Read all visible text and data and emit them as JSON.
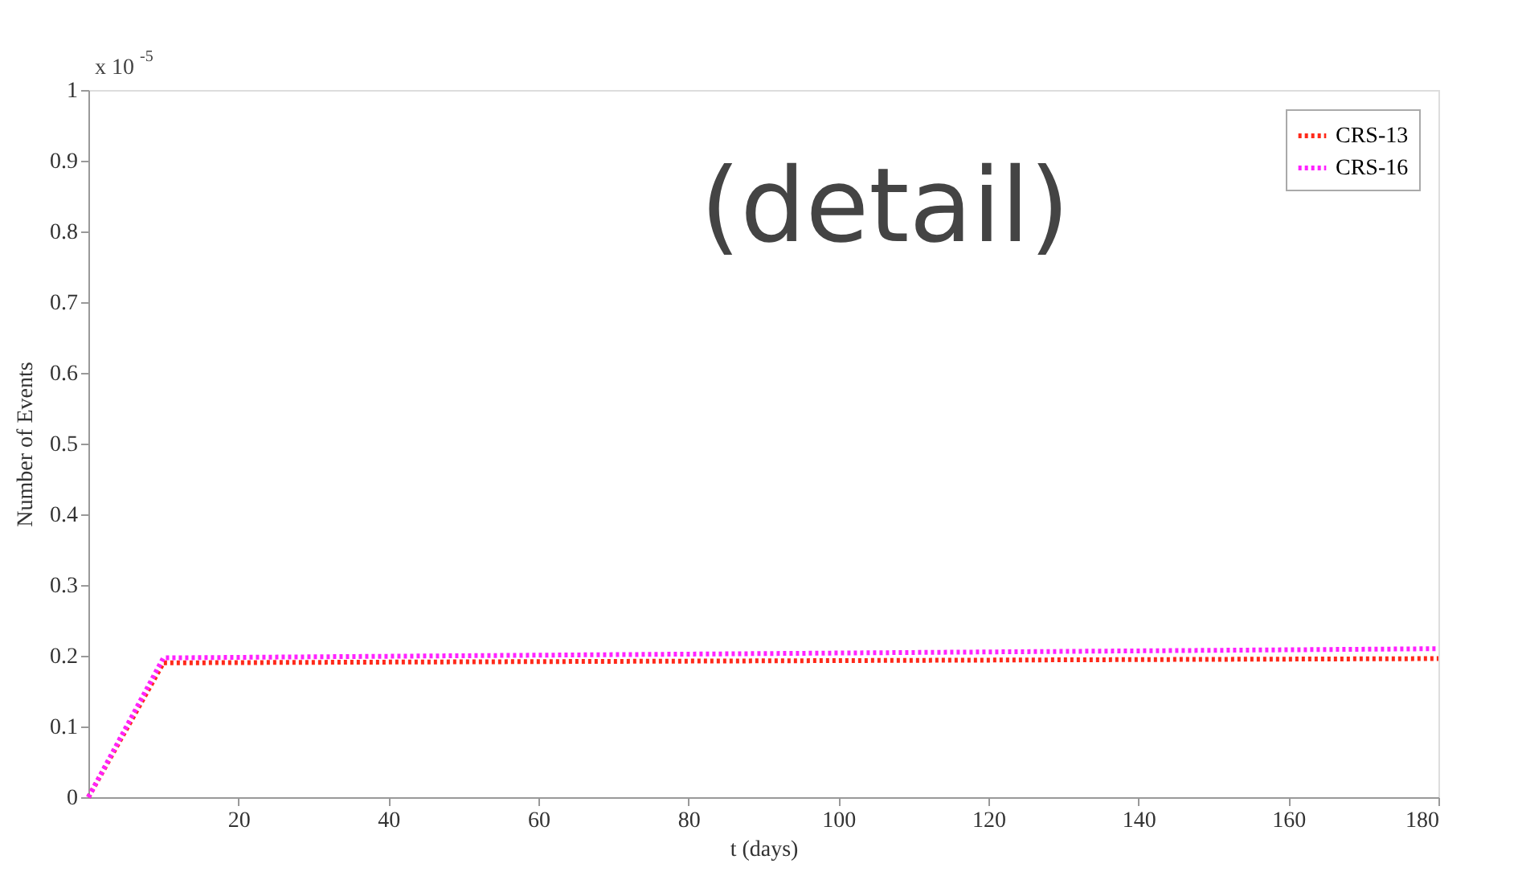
{
  "chart_data": {
    "type": "line",
    "xlabel": "t (days)",
    "ylabel": "Number of Events",
    "annotations": [
      "x 10$^{-5}$",
      "(detail)"
    ],
    "xlim": [
      0,
      180
    ],
    "xticks": [
      20,
      40,
      60,
      80,
      100,
      120,
      140,
      160,
      180
    ],
    "ylim": [
      0,
      1
    ],
    "yticks": [
      0,
      0.1,
      0.2,
      0.3,
      0.4,
      0.5,
      0.6,
      0.7,
      0.8,
      0.9,
      1
    ],
    "x": [
      0,
      10,
      180
    ],
    "series": [
      {
        "name": "CRS-13",
        "color": "#ff2a1a",
        "values": [
          0,
          0.19,
          0.196
        ]
      },
      {
        "name": "CRS-16",
        "color": "#ff22ff",
        "values": [
          0,
          0.197,
          0.21
        ]
      }
    ],
    "grid": false,
    "legend": "top right",
    "marker": "none",
    "line_style": "dotted"
  }
}
